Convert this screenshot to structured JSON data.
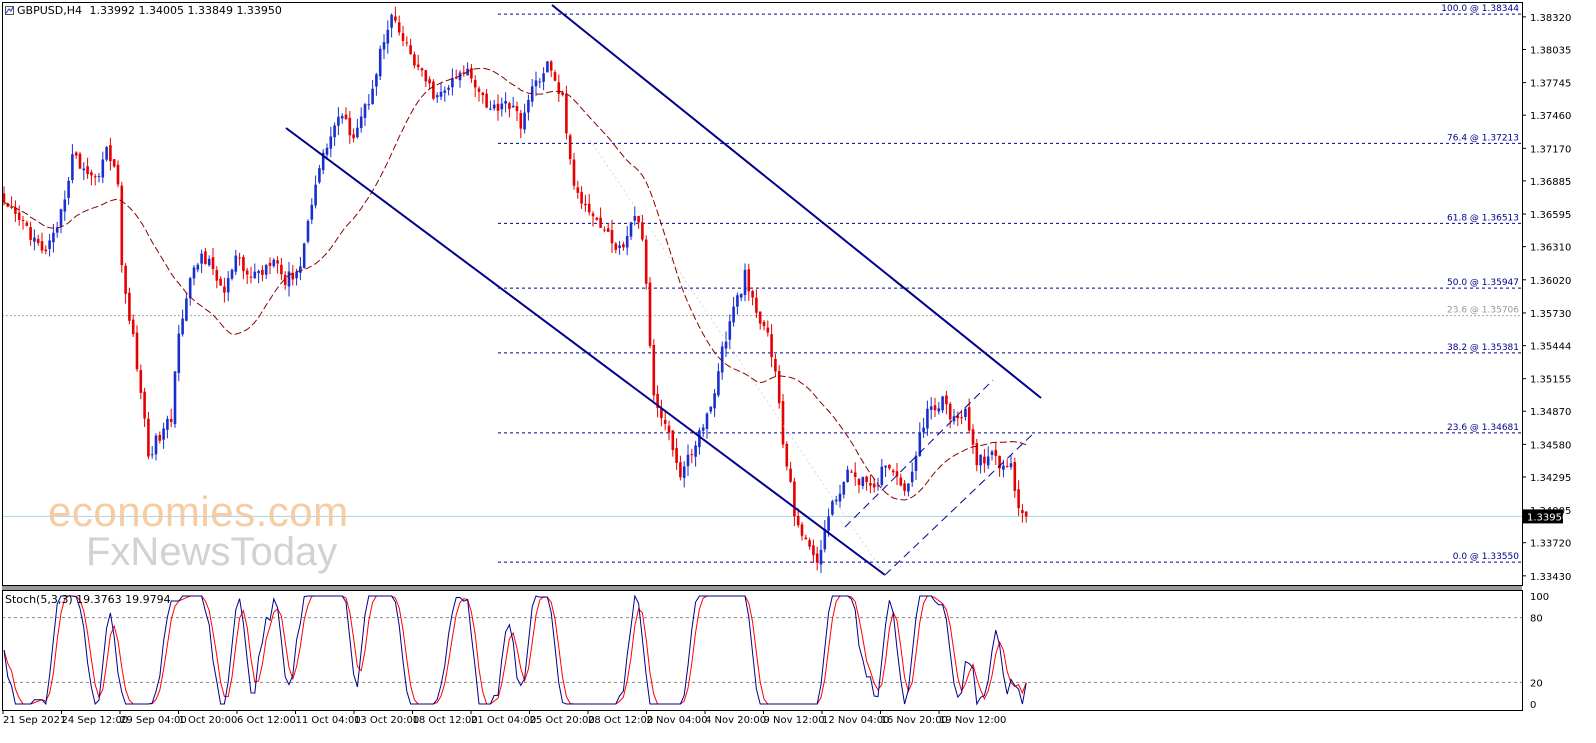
{
  "header": {
    "symbol": "GBPUSD,H4",
    "ohlc": "1.33992 1.34005 1.33849 1.33950"
  },
  "indicator": {
    "label": "Stoch(5,3,3) 19.3763 19.9794"
  },
  "watermark": {
    "line1": "economies.com",
    "line2": "FxNewsToday"
  },
  "colors": {
    "bull": "#1a2fcf",
    "bear": "#e60000",
    "channel": "#00008b",
    "fib": "#00008b",
    "ma": "#8b0000",
    "stoch_main": "#00008b",
    "stoch_signal": "#ff0000"
  },
  "chart_data": {
    "type": "candlestick",
    "price_axis": {
      "ticks": [
        "1.38320",
        "1.38035",
        "1.37745",
        "1.37460",
        "1.37170",
        "1.36885",
        "1.36595",
        "1.36310",
        "1.36020",
        "1.35730",
        "1.35444",
        "1.35155",
        "1.34870",
        "1.34580",
        "1.34295",
        "1.34005",
        "1.33720",
        "1.33430"
      ],
      "range": [
        1.3335,
        1.3845
      ],
      "current_price": "1.33950"
    },
    "time_axis": {
      "labels": [
        "21 Sep 2021",
        "24 Sep 12:00",
        "29 Sep 04:00",
        "1 Oct 20:00",
        "6 Oct 12:00",
        "11 Oct 04:00",
        "13 Oct 20:00",
        "18 Oct 12:00",
        "21 Oct 04:00",
        "25 Oct 20:00",
        "28 Oct 12:00",
        "2 Nov 04:00",
        "4 Nov 20:00",
        "9 Nov 12:00",
        "12 Nov 04:00",
        "16 Nov 20:00",
        "19 Nov 12:00"
      ]
    },
    "fibonacci": [
      {
        "label": "100.0 @ 1.38344",
        "price": 1.38344
      },
      {
        "label": "76.4 @ 1.37213",
        "price": 1.37213
      },
      {
        "label": "61.8 @ 1.36513",
        "price": 1.36513
      },
      {
        "label": "50.0 @ 1.35947",
        "price": 1.35947
      },
      {
        "label": "38.2 @ 1.35381",
        "price": 1.35381
      },
      {
        "label": "23.6 @ 1.34681",
        "price": 1.34681
      },
      {
        "label": "0.0 @ 1.33550",
        "price": 1.3355
      }
    ],
    "fib_secondary": {
      "label": "23.6 @ 1.35706",
      "price": 1.35706
    },
    "close_path": [
      [
        0,
        1.3665
      ],
      [
        6,
        1.3648
      ],
      [
        10,
        1.3625
      ],
      [
        14,
        1.3642
      ],
      [
        18,
        1.371
      ],
      [
        21,
        1.37
      ],
      [
        24,
        1.369
      ],
      [
        27,
        1.3715
      ],
      [
        30,
        1.369
      ],
      [
        31,
        1.361
      ],
      [
        34,
        1.355
      ],
      [
        36,
        1.3505
      ],
      [
        38,
        1.345
      ],
      [
        40,
        1.346
      ],
      [
        44,
        1.348
      ],
      [
        46,
        1.356
      ],
      [
        49,
        1.36
      ],
      [
        52,
        1.3625
      ],
      [
        55,
        1.361
      ],
      [
        58,
        1.359
      ],
      [
        61,
        1.362
      ],
      [
        64,
        1.3605
      ],
      [
        68,
        1.361
      ],
      [
        71,
        1.3625
      ],
      [
        74,
        1.36
      ],
      [
        78,
        1.3615
      ],
      [
        82,
        1.369
      ],
      [
        85,
        1.372
      ],
      [
        88,
        1.3745
      ],
      [
        92,
        1.373
      ],
      [
        96,
        1.376
      ],
      [
        99,
        1.38
      ],
      [
        102,
        1.383
      ],
      [
        106,
        1.3805
      ],
      [
        110,
        1.378
      ],
      [
        114,
        1.376
      ],
      [
        118,
        1.3775
      ],
      [
        122,
        1.3785
      ],
      [
        125,
        1.377
      ],
      [
        128,
        1.375
      ],
      [
        132,
        1.376
      ],
      [
        136,
        1.374
      ],
      [
        140,
        1.3775
      ],
      [
        143,
        1.379
      ],
      [
        147,
        1.376
      ],
      [
        150,
        1.368
      ],
      [
        153,
        1.367
      ],
      [
        157,
        1.365
      ],
      [
        160,
        1.3635
      ],
      [
        163,
        1.3625
      ],
      [
        166,
        1.366
      ],
      [
        168,
        1.364
      ],
      [
        171,
        1.35
      ],
      [
        174,
        1.348
      ],
      [
        178,
        1.343
      ],
      [
        182,
        1.346
      ],
      [
        186,
        1.349
      ],
      [
        189,
        1.354
      ],
      [
        192,
        1.3575
      ],
      [
        195,
        1.3605
      ],
      [
        198,
        1.357
      ],
      [
        201,
        1.3555
      ],
      [
        203,
        1.352
      ],
      [
        205,
        1.346
      ],
      [
        208,
        1.34
      ],
      [
        211,
        1.337
      ],
      [
        214,
        1.3358
      ],
      [
        217,
        1.3395
      ],
      [
        220,
        1.342
      ],
      [
        223,
        1.3435
      ],
      [
        226,
        1.3425
      ],
      [
        229,
        1.3415
      ],
      [
        232,
        1.3445
      ],
      [
        235,
        1.343
      ],
      [
        238,
        1.342
      ],
      [
        241,
        1.347
      ],
      [
        244,
        1.349
      ],
      [
        247,
        1.3495
      ],
      [
        250,
        1.348
      ],
      [
        253,
        1.349
      ],
      [
        256,
        1.344
      ],
      [
        259,
        1.345
      ],
      [
        262,
        1.344
      ],
      [
        265,
        1.3438
      ],
      [
        267,
        1.3405
      ],
      [
        269,
        1.3395
      ]
    ],
    "stochastic": {
      "label": "Stoch(5,3,3)",
      "main_value": 19.3763,
      "signal_value": 19.9794,
      "levels": [
        "100",
        "80",
        "20",
        "0"
      ],
      "reference_levels": [
        80,
        20
      ],
      "range": [
        0,
        100
      ]
    },
    "moving_average": {
      "style": "dashed",
      "color": "#8b0000"
    }
  }
}
